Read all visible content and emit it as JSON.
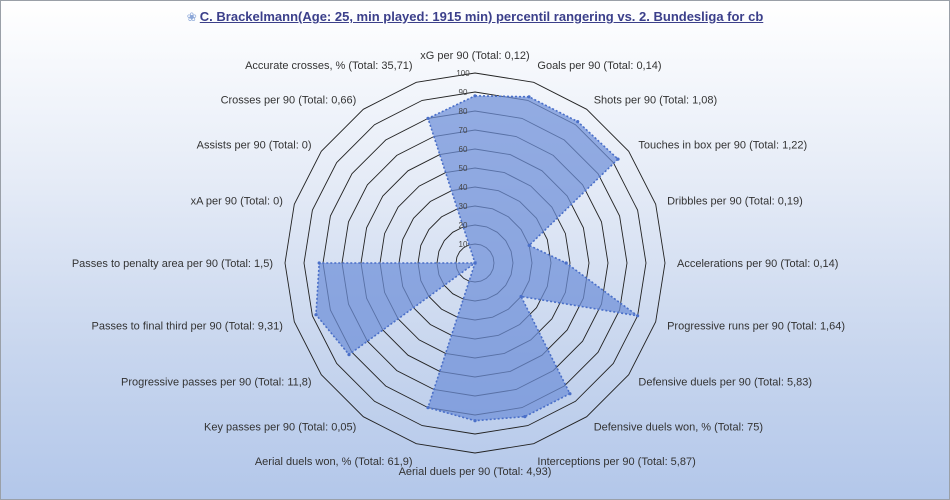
{
  "title": {
    "icon": "gear-flower-icon",
    "text": "C. Brackelmann(Age: 25, min played: 1915 min) percentil rangering vs. 2. Bundesliga for cb"
  },
  "chart_data": {
    "type": "radar",
    "title": "C. Brackelmann(Age: 25, min played: 1915 min) percentil rangering vs. 2. Bundesliga for cb",
    "rlim": [
      0,
      100
    ],
    "ticks": [
      10,
      20,
      30,
      40,
      50,
      60,
      70,
      80,
      90,
      100
    ],
    "grid": true,
    "series_color": "#6d8fd8",
    "series_edge_color": "#4a6fc8",
    "categories": [
      "xG per 90 (Total: 0,12)",
      "Goals per 90 (Total: 0,14)",
      "Shots per 90 (Total: 1,08)",
      "Touches in box per 90 (Total: 1,22)",
      "Dribbles per 90 (Total: 0,19)",
      "Accelerations per 90 (Total: 0,14)",
      "Progressive runs per 90 (Total: 1,64)",
      "Defensive duels per 90 (Total: 5,83)",
      "Defensive duels won, % (Total: 75)",
      "Interceptions per 90 (Total: 5,87)",
      "Aerial duels per 90 (Total: 4,93)",
      "Aerial duels won, % (Total: 61,9)",
      "Key passes per 90 (Total: 0,05)",
      "Progressive passes per 90 (Total: 11,8)",
      "Passes to final third per 90 (Total: 9,31)",
      "Passes to penalty area per 90 (Total: 1,5)",
      "xA per 90 (Total: 0)",
      "Assists per 90 (Total: 0)",
      "Crosses per 90 (Total: 0,66)",
      "Accurate crosses, % (Total: 35,71)"
    ],
    "values": [
      88,
      92,
      92,
      93,
      30,
      48,
      90,
      30,
      85,
      85,
      83,
      80,
      0,
      82,
      88,
      82,
      0,
      0,
      0,
      80
    ]
  }
}
